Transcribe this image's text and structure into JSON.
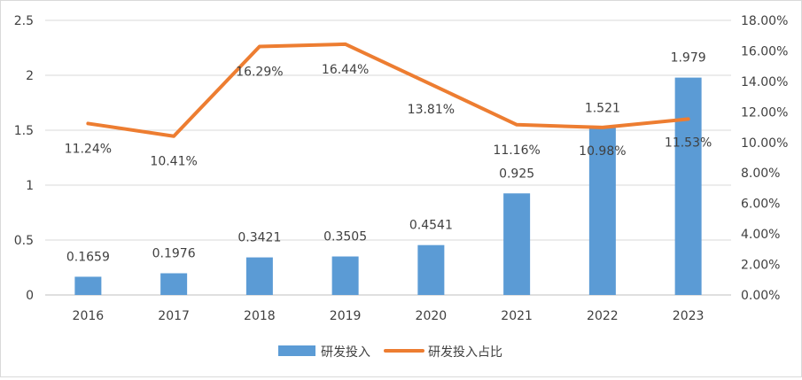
{
  "chart_data": {
    "type": "bar",
    "categories": [
      "2016",
      "2017",
      "2018",
      "2019",
      "2020",
      "2021",
      "2022",
      "2023"
    ],
    "series": [
      {
        "name": "研发投入",
        "type": "bar",
        "axis": "left",
        "color": "#5b9bd5",
        "values": [
          0.1659,
          0.1976,
          0.3421,
          0.3505,
          0.4541,
          0.925,
          1.521,
          1.979
        ],
        "labels": [
          "0.1659",
          "0.1976",
          "0.3421",
          "0.3505",
          "0.4541",
          "0.925",
          "1.521",
          "1.979"
        ]
      },
      {
        "name": "研发投入占比",
        "type": "line",
        "axis": "right",
        "color": "#ed7d31",
        "values": [
          11.24,
          10.41,
          16.29,
          16.44,
          13.81,
          11.16,
          10.98,
          11.53
        ],
        "labels": [
          "11.24%",
          "10.41%",
          "16.29%",
          "16.44%",
          "13.81%",
          "11.16%",
          "10.98%",
          "11.53%"
        ]
      }
    ],
    "y_left": {
      "ylim": [
        0,
        2.5
      ],
      "ticks": [
        "0",
        "0.5",
        "1",
        "1.5",
        "2",
        "2.5"
      ]
    },
    "y_right": {
      "ylim": [
        0,
        18
      ],
      "ticks": [
        "0.00%",
        "2.00%",
        "4.00%",
        "6.00%",
        "8.00%",
        "10.00%",
        "12.00%",
        "14.00%",
        "16.00%",
        "18.00%"
      ]
    },
    "grid": true,
    "legend": "bottom"
  }
}
